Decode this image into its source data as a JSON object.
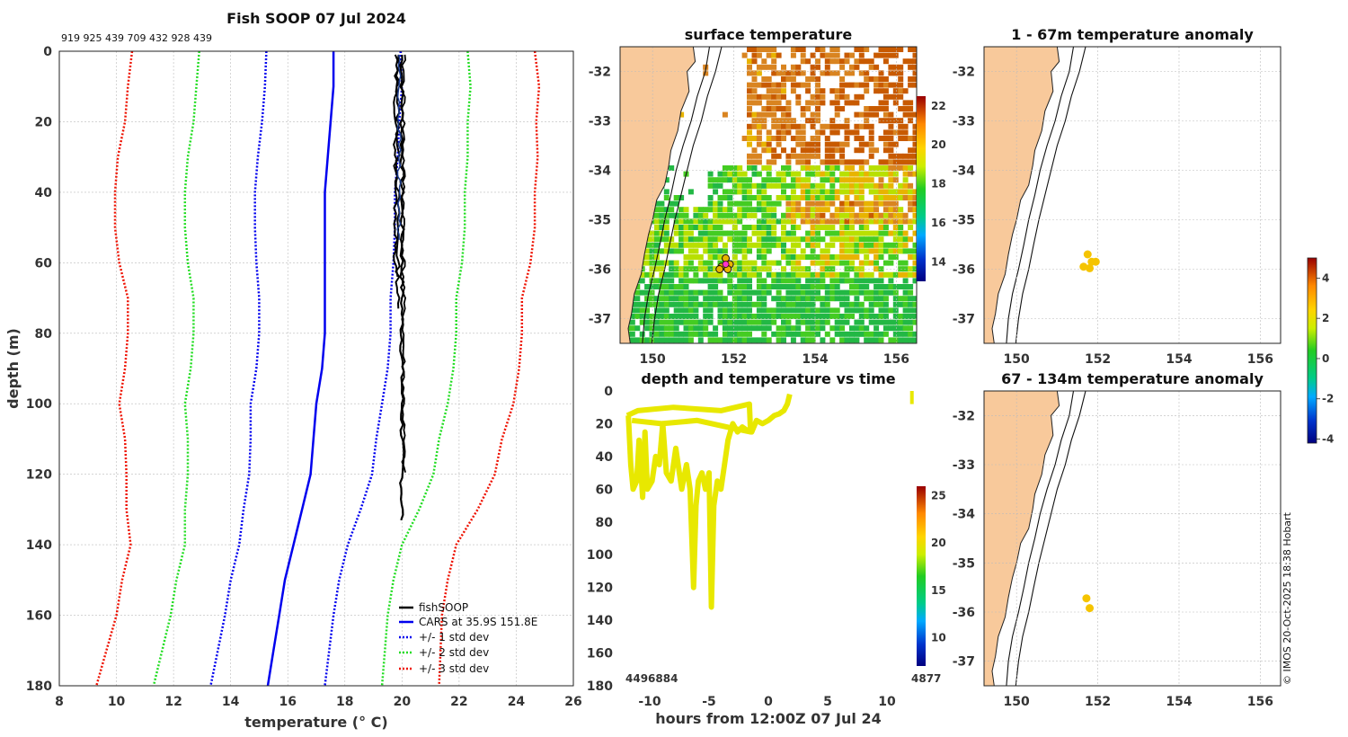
{
  "main_title": "Fish SOOP 07 Jul 2024",
  "sample_ids": "919 925 439 709 432 928 439",
  "copyright": "© IMOS 20-Oct-2025 18:38 Hobart",
  "colors": {
    "fishsoop": "#000000",
    "cars": "#0000ee",
    "std1": "#0000ee",
    "std2": "#22dd22",
    "std3": "#ee1100",
    "land": "#f8c99b",
    "marker": "#f5c400"
  },
  "chart_data": [
    {
      "id": "profile",
      "type": "line",
      "title": "Fish SOOP 07 Jul 2024",
      "xlabel": "temperature (° C)",
      "ylabel": "depth (m)",
      "xlim": [
        8,
        26
      ],
      "ylim": [
        0,
        180
      ],
      "y_inverted": true,
      "xticks": [
        "8",
        "10",
        "12",
        "14",
        "16",
        "18",
        "20",
        "22",
        "24",
        "26"
      ],
      "yticks": [
        "0",
        "20",
        "40",
        "60",
        "80",
        "100",
        "120",
        "140",
        "160",
        "180"
      ],
      "legend_position": "bottom-right",
      "legend": [
        "fishSOOP",
        "CARS at 35.9S 151.8E",
        "+/- 1 std dev",
        "+/- 2 std dev",
        "+/- 3 std dev"
      ],
      "depths": [
        0,
        10,
        20,
        30,
        40,
        50,
        60,
        70,
        80,
        90,
        100,
        110,
        120,
        130,
        140,
        150,
        160,
        170,
        180
      ],
      "cars_mean": [
        17.6,
        17.6,
        17.5,
        17.4,
        17.3,
        17.3,
        17.3,
        17.3,
        17.3,
        17.2,
        17.0,
        16.9,
        16.8,
        16.5,
        16.2,
        15.9,
        15.7,
        15.5,
        15.3
      ],
      "cars_std": [
        2.35,
        2.4,
        2.4,
        2.45,
        2.45,
        2.45,
        2.4,
        2.3,
        2.3,
        2.3,
        2.3,
        2.2,
        2.15,
        2.05,
        1.9,
        1.9,
        1.9,
        1.95,
        2.0
      ],
      "fishsoop": {
        "name": "fishSOOP",
        "depth_max": 134,
        "temperature_range": [
          19.7,
          20.1
        ]
      }
    },
    {
      "id": "sst",
      "type": "heatmap",
      "title": "surface temperature",
      "xlim": [
        149.2,
        156.5
      ],
      "ylim": [
        -37.5,
        -31.5
      ],
      "xticks": [
        "150",
        "152",
        "154",
        "156"
      ],
      "yticks": [
        "-32",
        "-33",
        "-34",
        "-35",
        "-36",
        "-37"
      ],
      "colorbar": {
        "range": [
          13,
          22.5
        ],
        "ticks": [
          "14",
          "16",
          "18",
          "20",
          "22"
        ]
      },
      "sample_location": [
        151.8,
        -35.9
      ]
    },
    {
      "id": "depth_time",
      "type": "scatter",
      "title": "depth and temperature vs time",
      "xlabel": "hours from 12:00Z 07 Jul 24",
      "xlim": [
        -12.5,
        12.5
      ],
      "ylim": [
        0,
        180
      ],
      "y_inverted": true,
      "xticks": [
        "-10",
        "-5",
        "0",
        "5",
        "10"
      ],
      "yticks": [
        "0",
        "20",
        "40",
        "60",
        "80",
        "100",
        "120",
        "140",
        "160",
        "180"
      ],
      "colorbar": {
        "range": [
          7,
          26
        ],
        "ticks": [
          "10",
          "15",
          "20",
          "25"
        ]
      },
      "bottom_labels": [
        "4496884",
        "4877"
      ],
      "track_hours": [
        -11.8,
        -11.6,
        -11.4,
        -11.1,
        -10.9,
        -10.6,
        -10.4,
        -10.2,
        -9.8,
        -9.5,
        -9.2,
        -8.9,
        -8.6,
        -8.2,
        -7.8,
        -7.3,
        -6.9,
        -6.6,
        -6.3,
        -6.1,
        -5.9,
        -5.6,
        -5.3,
        -5.0,
        -4.8,
        -4.6,
        -4.3,
        -4.0,
        -3.7,
        -3.4,
        -3.0,
        -2.6,
        -2.2,
        -1.8,
        -1.4,
        -1.0,
        -0.5,
        0.0,
        0.5,
        0.9,
        1.3,
        1.6,
        1.8
      ],
      "track_depth": [
        15,
        45,
        60,
        55,
        30,
        65,
        25,
        60,
        55,
        40,
        45,
        20,
        50,
        55,
        35,
        60,
        45,
        60,
        120,
        70,
        55,
        50,
        60,
        50,
        132,
        70,
        55,
        60,
        45,
        30,
        20,
        25,
        22,
        24,
        25,
        18,
        20,
        18,
        15,
        14,
        12,
        8,
        2
      ]
    },
    {
      "id": "anomaly_upper",
      "type": "scatter",
      "title": "1 - 67m temperature anomaly",
      "xlim": [
        149.2,
        156.5
      ],
      "ylim": [
        -37.5,
        -31.5
      ],
      "xticks": [
        "150",
        "152",
        "154",
        "156"
      ],
      "yticks": [
        "-32",
        "-33",
        "-34",
        "-35",
        "-36",
        "-37"
      ],
      "points": [
        [
          151.65,
          -35.95
        ],
        [
          151.75,
          -35.7
        ],
        [
          151.85,
          -35.85
        ],
        [
          151.8,
          -35.98
        ],
        [
          151.95,
          -35.85
        ]
      ],
      "value": 3.2
    },
    {
      "id": "anomaly_lower",
      "type": "scatter",
      "title": "67 - 134m temperature anomaly",
      "xlim": [
        149.2,
        156.5
      ],
      "ylim": [
        -37.5,
        -31.5
      ],
      "xticks": [
        "150",
        "152",
        "154",
        "156"
      ],
      "yticks": [
        "-32",
        "-33",
        "-34",
        "-35",
        "-36",
        "-37"
      ],
      "points": [
        [
          151.72,
          -35.72
        ],
        [
          151.8,
          -35.92
        ]
      ],
      "value": 3.3
    },
    {
      "id": "anomaly_colorbar",
      "type": "colorbar",
      "range": [
        -4.2,
        5.0
      ],
      "ticks": [
        "-4",
        "-2",
        "0",
        "2",
        "4"
      ]
    }
  ]
}
